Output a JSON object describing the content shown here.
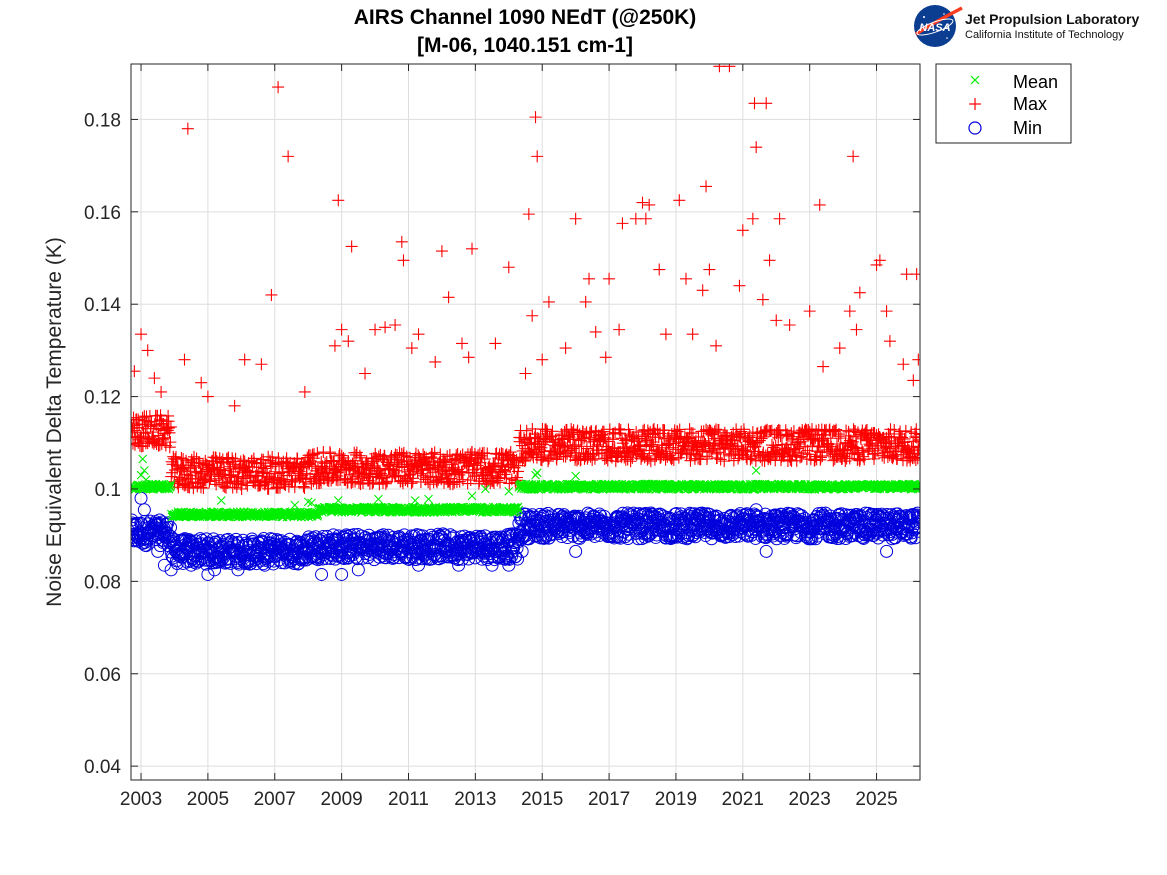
{
  "logo": {
    "emblem_text": "NASA",
    "title": "Jet Propulsion Laboratory",
    "subtitle": "California Institute of Technology"
  },
  "chart_data": {
    "type": "scatter",
    "title": [
      "AIRS Channel 1090 NEdT (@250K)",
      "[M-06, 1040.151 cm-1]"
    ],
    "xlabel": "",
    "ylabel": "Noise Equivalent Delta Temperature (K)",
    "xlim": [
      2002.7,
      2026.3
    ],
    "ylim": [
      0.037,
      0.192
    ],
    "xticks": [
      2003,
      2005,
      2007,
      2009,
      2011,
      2013,
      2015,
      2017,
      2019,
      2021,
      2023,
      2025
    ],
    "xtick_labels": [
      "2003",
      "2005",
      "2007",
      "2009",
      "2011",
      "2013",
      "2015",
      "2017",
      "2019",
      "2021",
      "2023",
      "2025"
    ],
    "yticks": [
      0.04,
      0.06,
      0.08,
      0.1,
      0.12,
      0.14,
      0.16,
      0.18
    ],
    "ytick_labels": [
      "0.04",
      "0.06",
      "0.08",
      "0.1",
      "0.12",
      "0.14",
      "0.16",
      "0.18"
    ],
    "grid": true,
    "legend_position": "outside-top-right",
    "series": [
      {
        "name": "Mean",
        "marker": "x",
        "color": "#00ee00",
        "baseline": [
          {
            "from": 2002.7,
            "to": 2003.9,
            "value": 0.1005
          },
          {
            "from": 2003.9,
            "to": 2008.3,
            "value": 0.0945
          },
          {
            "from": 2008.3,
            "to": 2014.3,
            "value": 0.0955
          },
          {
            "from": 2014.3,
            "to": 2026.3,
            "value": 0.1005
          }
        ],
        "points": [
          [
            2003.0,
            0.103
          ],
          [
            2003.05,
            0.1065
          ],
          [
            2003.1,
            0.104
          ],
          [
            2003.15,
            0.102
          ],
          [
            2005.4,
            0.0975
          ],
          [
            2007.6,
            0.0965
          ],
          [
            2008.0,
            0.0972
          ],
          [
            2008.1,
            0.097
          ],
          [
            2008.9,
            0.0975
          ],
          [
            2010.1,
            0.0978
          ],
          [
            2011.2,
            0.0975
          ],
          [
            2011.6,
            0.0978
          ],
          [
            2012.9,
            0.0985
          ],
          [
            2013.3,
            0.1
          ],
          [
            2014.0,
            0.0995
          ],
          [
            2014.8,
            0.103
          ],
          [
            2014.85,
            0.1035
          ],
          [
            2016.0,
            0.1028
          ],
          [
            2021.4,
            0.104
          ]
        ]
      },
      {
        "name": "Max",
        "marker": "+",
        "color": "#ff0000",
        "baseline": [
          {
            "from": 2002.7,
            "to": 2003.9,
            "value": 0.1125
          },
          {
            "from": 2003.9,
            "to": 2008.0,
            "value": 0.1035
          },
          {
            "from": 2008.0,
            "to": 2014.3,
            "value": 0.1045
          },
          {
            "from": 2014.3,
            "to": 2026.3,
            "value": 0.1095
          }
        ],
        "points": [
          [
            2002.8,
            0.1255
          ],
          [
            2003.0,
            0.1335
          ],
          [
            2003.2,
            0.13
          ],
          [
            2003.4,
            0.124
          ],
          [
            2003.6,
            0.121
          ],
          [
            2004.3,
            0.128
          ],
          [
            2004.4,
            0.178
          ],
          [
            2004.8,
            0.123
          ],
          [
            2005.0,
            0.12
          ],
          [
            2005.8,
            0.118
          ],
          [
            2006.1,
            0.128
          ],
          [
            2006.6,
            0.127
          ],
          [
            2006.9,
            0.142
          ],
          [
            2007.1,
            0.187
          ],
          [
            2007.4,
            0.172
          ],
          [
            2007.9,
            0.121
          ],
          [
            2008.8,
            0.131
          ],
          [
            2008.9,
            0.1625
          ],
          [
            2009.0,
            0.1345
          ],
          [
            2009.2,
            0.132
          ],
          [
            2009.3,
            0.1525
          ],
          [
            2009.7,
            0.125
          ],
          [
            2010.0,
            0.1345
          ],
          [
            2010.3,
            0.135
          ],
          [
            2010.6,
            0.1355
          ],
          [
            2010.8,
            0.1535
          ],
          [
            2010.85,
            0.1495
          ],
          [
            2011.1,
            0.1305
          ],
          [
            2011.3,
            0.1335
          ],
          [
            2011.8,
            0.1275
          ],
          [
            2012.0,
            0.1515
          ],
          [
            2012.2,
            0.1415
          ],
          [
            2012.6,
            0.1315
          ],
          [
            2012.8,
            0.1285
          ],
          [
            2012.9,
            0.152
          ],
          [
            2013.6,
            0.1315
          ],
          [
            2014.0,
            0.148
          ],
          [
            2014.5,
            0.125
          ],
          [
            2014.6,
            0.1595
          ],
          [
            2014.7,
            0.1375
          ],
          [
            2014.8,
            0.1805
          ],
          [
            2014.85,
            0.172
          ],
          [
            2015.0,
            0.128
          ],
          [
            2015.2,
            0.1405
          ],
          [
            2015.7,
            0.1305
          ],
          [
            2016.0,
            0.1585
          ],
          [
            2016.3,
            0.1405
          ],
          [
            2016.4,
            0.1455
          ],
          [
            2016.6,
            0.134
          ],
          [
            2016.9,
            0.1285
          ],
          [
            2017.0,
            0.1455
          ],
          [
            2017.3,
            0.1345
          ],
          [
            2017.4,
            0.1575
          ],
          [
            2017.8,
            0.1585
          ],
          [
            2018.0,
            0.162
          ],
          [
            2018.1,
            0.1585
          ],
          [
            2018.2,
            0.1615
          ],
          [
            2018.5,
            0.1475
          ],
          [
            2018.7,
            0.1335
          ],
          [
            2019.1,
            0.1625
          ],
          [
            2019.3,
            0.1455
          ],
          [
            2019.5,
            0.1335
          ],
          [
            2019.8,
            0.143
          ],
          [
            2019.9,
            0.1655
          ],
          [
            2020.0,
            0.1475
          ],
          [
            2020.2,
            0.131
          ],
          [
            2020.3,
            0.1915
          ],
          [
            2020.6,
            0.1915
          ],
          [
            2020.9,
            0.144
          ],
          [
            2021.0,
            0.156
          ],
          [
            2021.3,
            0.1585
          ],
          [
            2021.35,
            0.1835
          ],
          [
            2021.4,
            0.174
          ],
          [
            2021.6,
            0.141
          ],
          [
            2021.7,
            0.1835
          ],
          [
            2021.8,
            0.1495
          ],
          [
            2022.0,
            0.1365
          ],
          [
            2022.1,
            0.1585
          ],
          [
            2022.4,
            0.1355
          ],
          [
            2023.0,
            0.1385
          ],
          [
            2023.3,
            0.1615
          ],
          [
            2023.4,
            0.1265
          ],
          [
            2023.9,
            0.1305
          ],
          [
            2024.2,
            0.1385
          ],
          [
            2024.3,
            0.172
          ],
          [
            2024.4,
            0.1345
          ],
          [
            2024.5,
            0.1425
          ],
          [
            2025.0,
            0.1485
          ],
          [
            2025.1,
            0.1495
          ],
          [
            2025.3,
            0.1385
          ],
          [
            2025.4,
            0.132
          ],
          [
            2025.8,
            0.127
          ],
          [
            2025.9,
            0.1465
          ],
          [
            2026.2,
            0.1465
          ],
          [
            2026.25,
            0.128
          ],
          [
            2026.1,
            0.1235
          ]
        ]
      },
      {
        "name": "Min",
        "marker": "o",
        "color": "#0000dd",
        "baseline": [
          {
            "from": 2002.7,
            "to": 2003.9,
            "value": 0.0905
          },
          {
            "from": 2003.9,
            "to": 2008.0,
            "value": 0.0865
          },
          {
            "from": 2008.0,
            "to": 2014.3,
            "value": 0.0875
          },
          {
            "from": 2014.3,
            "to": 2026.3,
            "value": 0.092
          }
        ],
        "points": [
          [
            2003.0,
            0.098
          ],
          [
            2003.1,
            0.0955
          ],
          [
            2003.5,
            0.0865
          ],
          [
            2003.7,
            0.0835
          ],
          [
            2003.9,
            0.0825
          ],
          [
            2004.5,
            0.0835
          ],
          [
            2005.0,
            0.0815
          ],
          [
            2005.2,
            0.0825
          ],
          [
            2005.9,
            0.0825
          ],
          [
            2006.7,
            0.0835
          ],
          [
            2008.4,
            0.0815
          ],
          [
            2009.0,
            0.0815
          ],
          [
            2009.5,
            0.0825
          ],
          [
            2011.3,
            0.0835
          ],
          [
            2012.5,
            0.0835
          ],
          [
            2013.5,
            0.0835
          ],
          [
            2014.0,
            0.0835
          ],
          [
            2014.4,
            0.0865
          ],
          [
            2016.0,
            0.0865
          ],
          [
            2021.7,
            0.0865
          ],
          [
            2025.3,
            0.0865
          ],
          [
            2021.4,
            0.0955
          ],
          [
            2024.9,
            0.0945
          ]
        ]
      }
    ]
  }
}
